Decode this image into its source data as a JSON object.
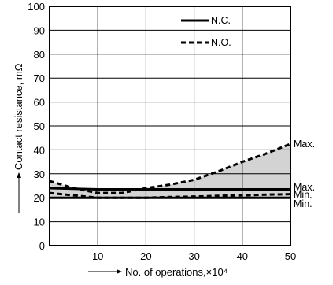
{
  "chart_data": {
    "type": "line",
    "title": "",
    "xlabel": "No. of operations,×10⁴",
    "ylabel": "Contact resistance, mΩ",
    "xlim": [
      0,
      50
    ],
    "ylim": [
      0,
      100
    ],
    "x_ticks": [
      "10",
      "20",
      "30",
      "40",
      "50"
    ],
    "y_ticks": [
      "0",
      "10",
      "20",
      "30",
      "40",
      "50",
      "60",
      "70",
      "80",
      "90",
      "100"
    ],
    "grid": true,
    "legend_position": "top-center",
    "series": [
      {
        "name": "N.C.",
        "style": "solid",
        "color": "#000000",
        "bands": [
          {
            "label_upper": "Max.",
            "label_lower": "Min.",
            "x": [
              0,
              10,
              20,
              30,
              40,
              50
            ],
            "upper": [
              24,
              23.5,
              23.5,
              23.5,
              23.5,
              23.5
            ],
            "lower": [
              20,
              20,
              20,
              20,
              20,
              20
            ]
          }
        ]
      },
      {
        "name": "N.O.",
        "style": "dashed",
        "color": "#000000",
        "bands": [
          {
            "label_upper": "Max.",
            "label_lower": "Min.",
            "x": [
              0,
              5,
              10,
              15,
              20,
              25,
              30,
              35,
              40,
              45,
              50
            ],
            "upper": [
              27,
              24,
              22,
              22,
              24,
              25.5,
              27.5,
              31,
              35,
              38.5,
              42.5
            ],
            "lower": [
              22,
              21,
              20,
              20,
              20,
              20.3,
              20.5,
              20.8,
              21,
              21.3,
              21.5
            ]
          }
        ]
      }
    ],
    "fill_color": "#d3d3d3",
    "annotations": [
      {
        "text": "Max.",
        "series": "N.O.",
        "at": "upper",
        "x": 50,
        "y": 42.5
      },
      {
        "text": "Max.",
        "series": "N.C.",
        "at": "upper",
        "x": 50,
        "y": 24
      },
      {
        "text": "Min.",
        "series": "N.O.",
        "at": "lower",
        "x": 50,
        "y": 21.5
      },
      {
        "text": "Min.",
        "series": "N.C.",
        "at": "lower",
        "x": 50,
        "y": 19
      }
    ]
  }
}
